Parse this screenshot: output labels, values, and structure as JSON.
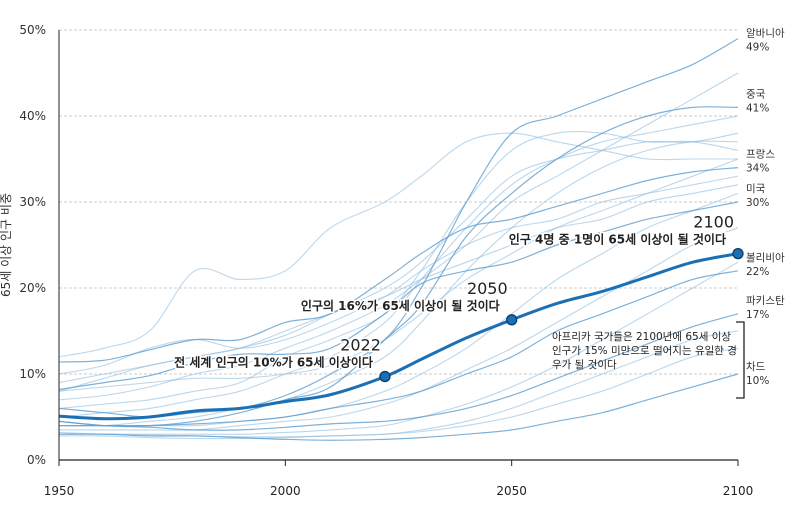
{
  "chart_data": {
    "type": "line",
    "title": "",
    "ylabel": "65세 이상 인구 비중",
    "xlabel": "",
    "xlim": [
      1950,
      2100
    ],
    "ylim": [
      0,
      50
    ],
    "x_ticks": [
      "1950",
      "2000",
      "2050",
      "2100"
    ],
    "y_ticks": [
      "0%",
      "10%",
      "20%",
      "30%",
      "40%",
      "50%"
    ],
    "grid": "horizontal dashed",
    "colors": {
      "world": "#1a6fb5",
      "countries": "#8dbde0",
      "grid": "#cccccc"
    },
    "x": [
      1950,
      1960,
      1970,
      1980,
      1990,
      2000,
      2010,
      2022,
      2030,
      2040,
      2050,
      2060,
      2070,
      2080,
      2090,
      2100
    ],
    "world": {
      "values": [
        5.1,
        4.8,
        5.0,
        5.7,
        6.0,
        6.8,
        7.6,
        9.7,
        11.7,
        14.2,
        16.3,
        18.2,
        19.6,
        21.3,
        23.0,
        24.0
      ],
      "annotations": [
        {
          "year": "2022",
          "value": 9.7,
          "text": "전 세계 인구의 10%가 65세 이상이다"
        },
        {
          "year": "2050",
          "value": 16.3,
          "text": "인구의 16%가 65세 이상이 될 것이다"
        },
        {
          "year": "2100",
          "value": 24.0,
          "text": "인구 4명 중 1명이 65세 이상이 될 것이다"
        }
      ]
    },
    "labeled_series": [
      {
        "name": "알바니아",
        "end_label": "49%",
        "values": [
          6,
          5.5,
          5,
          5.5,
          6,
          7.5,
          10,
          14,
          20,
          30,
          38,
          40,
          42,
          44,
          46,
          49
        ]
      },
      {
        "name": "중국",
        "end_label": "41%",
        "values": [
          4.5,
          4,
          4,
          4.5,
          5.5,
          7,
          8.5,
          14,
          18,
          26,
          31,
          35,
          38,
          40,
          41,
          41
        ]
      },
      {
        "name": "프랑스",
        "end_label": "34%",
        "values": [
          11.4,
          11.6,
          12.8,
          14,
          14,
          16,
          17,
          21,
          24,
          27,
          28,
          29.5,
          31,
          32.5,
          33.5,
          34
        ]
      },
      {
        "name": "미국",
        "end_label": "30%",
        "values": [
          8.2,
          9,
          9.8,
          11.3,
          12.3,
          12.3,
          13,
          17,
          20.5,
          22,
          23,
          25,
          26.5,
          28,
          29,
          30
        ]
      },
      {
        "name": "볼리비아",
        "end_label": "22%",
        "values": [
          4,
          4,
          4,
          4.2,
          4.5,
          5,
          6,
          7,
          8,
          10,
          12,
          15,
          17,
          19,
          21,
          22
        ]
      },
      {
        "name": "파키스탄",
        "end_label": "17%",
        "values": [
          4.5,
          4,
          3.8,
          3.5,
          3.5,
          3.8,
          4.2,
          4.5,
          5,
          6,
          7.5,
          9.5,
          11.5,
          13.5,
          15.5,
          17
        ]
      },
      {
        "name": "차드",
        "end_label": "10%",
        "values": [
          3,
          3,
          2.8,
          2.8,
          2.6,
          2.4,
          2.3,
          2.4,
          2.6,
          3,
          3.5,
          4.5,
          5.5,
          7,
          8.5,
          10
        ]
      }
    ],
    "background_series": [
      [
        8,
        8.5,
        9,
        9.5,
        9.5,
        10,
        11,
        14,
        17,
        21,
        24,
        27,
        29,
        31,
        33,
        35
      ],
      [
        9,
        10,
        11,
        12,
        13,
        14.5,
        17,
        20,
        23,
        28,
        33,
        35,
        36,
        37,
        37,
        38
      ],
      [
        10,
        11,
        13,
        14,
        13,
        14,
        16,
        19,
        22,
        25,
        27,
        28,
        30,
        31,
        32,
        33
      ],
      [
        6,
        6.5,
        7,
        8,
        9,
        12,
        14,
        17,
        22,
        30,
        36,
        38,
        38,
        37,
        37,
        36
      ],
      [
        5,
        5.5,
        6,
        7,
        8,
        10,
        12,
        16,
        21,
        27,
        32,
        35,
        37,
        38,
        39,
        40
      ],
      [
        4,
        4,
        4.5,
        5,
        6,
        7,
        9,
        12,
        16,
        22,
        27,
        31,
        34,
        36,
        37,
        37
      ],
      [
        8,
        9.5,
        11,
        12,
        13,
        15,
        17,
        19,
        21,
        23,
        25,
        27,
        28,
        30,
        31,
        32
      ],
      [
        4,
        4,
        4,
        4,
        4.5,
        5,
        6,
        8,
        10,
        13,
        17,
        21,
        24,
        27,
        29,
        31
      ],
      [
        3.5,
        3.5,
        3.5,
        3.5,
        4,
        4.5,
        5,
        6.5,
        8,
        10.5,
        13,
        16,
        19,
        22,
        25,
        27
      ],
      [
        3,
        3,
        3,
        3,
        3,
        3.2,
        3.5,
        4,
        5,
        6.5,
        8.5,
        11,
        14,
        17,
        20,
        23
      ],
      [
        2.8,
        2.8,
        2.6,
        2.5,
        2.5,
        2.6,
        2.8,
        3,
        3.5,
        4.5,
        6,
        8,
        10,
        12,
        14,
        15
      ],
      [
        3.2,
        3,
        2.9,
        2.8,
        2.7,
        2.7,
        2.8,
        3,
        3.3,
        4,
        5,
        6.5,
        8,
        10,
        12,
        13
      ],
      [
        12,
        13,
        15,
        22,
        21,
        22,
        27,
        30,
        33,
        37,
        38,
        37,
        36,
        35,
        35,
        35
      ],
      [
        7,
        7.5,
        8.5,
        10,
        11,
        13,
        15,
        18,
        21,
        25,
        30,
        33,
        36,
        39,
        42,
        45
      ]
    ],
    "bracket_annotation": "아프리카 국가들은 2100년에 65세 이상 인구가 15% 미만으로 떨어지는 유일한 경우가 될 것이다"
  }
}
